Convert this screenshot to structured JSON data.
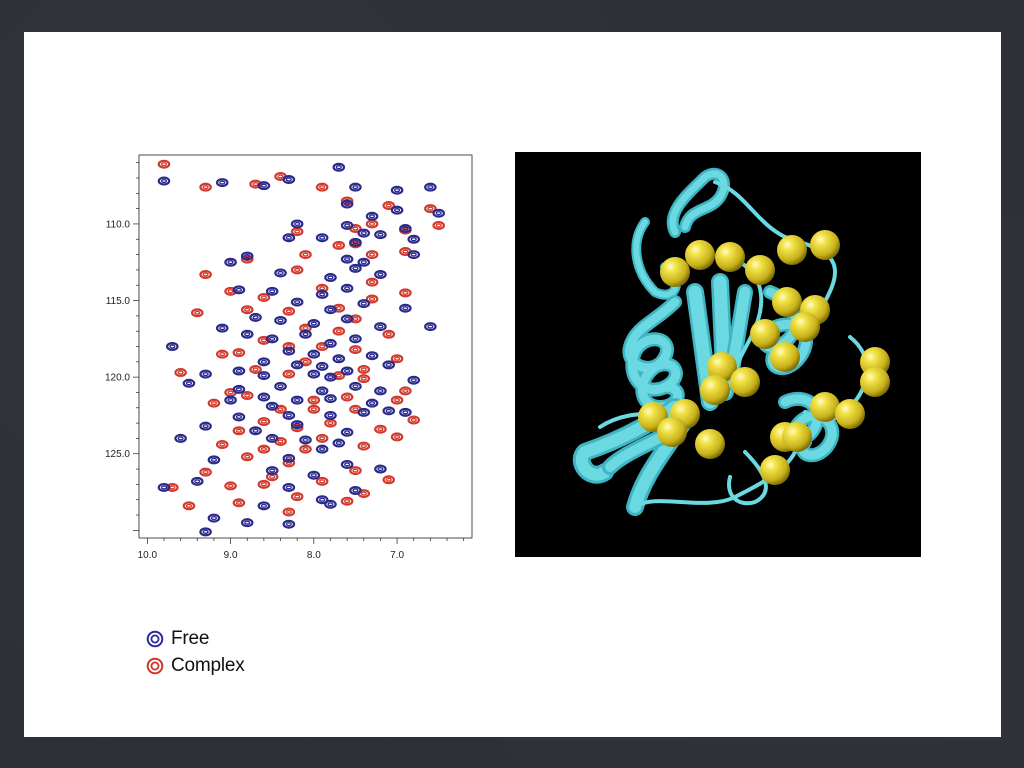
{
  "chart_data": {
    "type": "scatter",
    "title": "",
    "xlabel": "",
    "ylabel": "",
    "xlim": [
      10.1,
      6.1
    ],
    "ylim": [
      105.5,
      130.5
    ],
    "x_ticks": [
      10.0,
      9.0,
      8.0,
      7.0
    ],
    "x_tick_labels": [
      "10.0",
      "9.0",
      "8.0",
      "7.0"
    ],
    "y_ticks": [
      110.0,
      115.0,
      120.0,
      125.0
    ],
    "y_tick_labels": [
      "110.0",
      "115.0",
      "120.0",
      "125.0"
    ],
    "grid": false,
    "legend_position": "bottom-left, below plot",
    "series": [
      {
        "name": "Free",
        "color": "#2a2a8c",
        "points": [
          [
            9.8,
            107.2
          ],
          [
            9.1,
            107.3
          ],
          [
            8.6,
            107.5
          ],
          [
            8.3,
            107.1
          ],
          [
            7.7,
            106.3
          ],
          [
            7.5,
            107.6
          ],
          [
            7.0,
            107.8
          ],
          [
            6.6,
            107.6
          ],
          [
            7.6,
            108.7
          ],
          [
            7.3,
            109.5
          ],
          [
            7.0,
            109.1
          ],
          [
            6.5,
            109.3
          ],
          [
            8.2,
            110.0
          ],
          [
            7.6,
            110.1
          ],
          [
            7.2,
            110.7
          ],
          [
            6.9,
            110.3
          ],
          [
            8.3,
            110.9
          ],
          [
            7.9,
            110.9
          ],
          [
            7.5,
            111.2
          ],
          [
            7.4,
            110.6
          ],
          [
            6.8,
            111.0
          ],
          [
            9.0,
            112.5
          ],
          [
            8.8,
            112.1
          ],
          [
            7.6,
            112.3
          ],
          [
            7.4,
            112.5
          ],
          [
            6.8,
            112.0
          ],
          [
            8.4,
            113.2
          ],
          [
            7.8,
            113.5
          ],
          [
            7.5,
            112.9
          ],
          [
            7.2,
            113.3
          ],
          [
            8.9,
            114.3
          ],
          [
            8.5,
            114.4
          ],
          [
            7.9,
            114.6
          ],
          [
            7.6,
            114.2
          ],
          [
            8.2,
            115.1
          ],
          [
            7.8,
            115.6
          ],
          [
            7.4,
            115.2
          ],
          [
            6.9,
            115.5
          ],
          [
            8.7,
            116.1
          ],
          [
            8.4,
            116.3
          ],
          [
            8.0,
            116.5
          ],
          [
            7.6,
            116.2
          ],
          [
            7.2,
            116.7
          ],
          [
            6.6,
            116.7
          ],
          [
            9.1,
            116.8
          ],
          [
            8.8,
            117.2
          ],
          [
            8.5,
            117.5
          ],
          [
            8.1,
            117.2
          ],
          [
            7.8,
            117.8
          ],
          [
            7.5,
            117.5
          ],
          [
            9.7,
            118.0
          ],
          [
            8.3,
            118.3
          ],
          [
            8.0,
            118.5
          ],
          [
            7.7,
            118.8
          ],
          [
            7.3,
            118.6
          ],
          [
            8.6,
            119.0
          ],
          [
            8.2,
            119.2
          ],
          [
            7.9,
            119.3
          ],
          [
            7.6,
            119.6
          ],
          [
            7.1,
            119.2
          ],
          [
            9.3,
            119.8
          ],
          [
            8.9,
            119.6
          ],
          [
            8.6,
            119.9
          ],
          [
            8.0,
            119.8
          ],
          [
            7.8,
            120.0
          ],
          [
            6.8,
            120.2
          ],
          [
            9.5,
            120.4
          ],
          [
            8.9,
            120.8
          ],
          [
            8.4,
            120.6
          ],
          [
            7.9,
            120.9
          ],
          [
            7.5,
            120.6
          ],
          [
            7.2,
            120.9
          ],
          [
            8.6,
            121.3
          ],
          [
            8.2,
            121.5
          ],
          [
            7.8,
            121.4
          ],
          [
            7.3,
            121.7
          ],
          [
            9.0,
            121.5
          ],
          [
            8.5,
            121.9
          ],
          [
            7.1,
            122.2
          ],
          [
            8.9,
            122.6
          ],
          [
            8.3,
            122.5
          ],
          [
            7.8,
            122.5
          ],
          [
            7.4,
            122.3
          ],
          [
            6.9,
            122.3
          ],
          [
            9.3,
            123.2
          ],
          [
            8.7,
            123.5
          ],
          [
            8.2,
            123.1
          ],
          [
            7.6,
            123.6
          ],
          [
            8.5,
            124.0
          ],
          [
            8.1,
            124.1
          ],
          [
            7.7,
            124.3
          ],
          [
            7.9,
            124.7
          ],
          [
            9.6,
            124.0
          ],
          [
            9.2,
            125.4
          ],
          [
            8.3,
            125.3
          ],
          [
            7.6,
            125.7
          ],
          [
            8.5,
            126.1
          ],
          [
            8.0,
            126.4
          ],
          [
            7.2,
            126.0
          ],
          [
            9.4,
            126.8
          ],
          [
            8.3,
            127.2
          ],
          [
            7.5,
            127.4
          ],
          [
            9.8,
            127.2
          ],
          [
            7.9,
            128.0
          ],
          [
            8.6,
            128.4
          ],
          [
            9.2,
            129.2
          ],
          [
            8.3,
            129.6
          ],
          [
            8.8,
            129.5
          ],
          [
            7.8,
            128.3
          ],
          [
            9.3,
            130.1
          ]
        ]
      },
      {
        "name": "Complex",
        "color": "#d23a2d",
        "points": [
          [
            9.8,
            106.1
          ],
          [
            9.3,
            107.6
          ],
          [
            8.7,
            107.4
          ],
          [
            8.4,
            106.9
          ],
          [
            7.9,
            107.6
          ],
          [
            7.6,
            108.5
          ],
          [
            7.1,
            108.8
          ],
          [
            6.6,
            109.0
          ],
          [
            7.5,
            110.3
          ],
          [
            7.3,
            110.0
          ],
          [
            6.9,
            110.4
          ],
          [
            6.5,
            110.1
          ],
          [
            8.2,
            110.5
          ],
          [
            7.5,
            111.3
          ],
          [
            7.7,
            111.4
          ],
          [
            6.9,
            111.8
          ],
          [
            8.1,
            112.0
          ],
          [
            7.3,
            112.0
          ],
          [
            8.8,
            112.3
          ],
          [
            8.2,
            113.0
          ],
          [
            7.3,
            113.8
          ],
          [
            9.3,
            113.3
          ],
          [
            9.0,
            114.4
          ],
          [
            8.6,
            114.8
          ],
          [
            7.9,
            114.2
          ],
          [
            7.3,
            114.9
          ],
          [
            6.9,
            114.5
          ],
          [
            8.8,
            115.6
          ],
          [
            8.3,
            115.7
          ],
          [
            7.7,
            115.5
          ],
          [
            7.5,
            116.2
          ],
          [
            9.4,
            115.8
          ],
          [
            8.1,
            116.8
          ],
          [
            7.7,
            117.0
          ],
          [
            7.1,
            117.2
          ],
          [
            8.6,
            117.6
          ],
          [
            8.3,
            118.0
          ],
          [
            7.9,
            118.0
          ],
          [
            7.5,
            118.2
          ],
          [
            9.1,
            118.5
          ],
          [
            8.9,
            118.4
          ],
          [
            8.1,
            119.0
          ],
          [
            7.4,
            119.5
          ],
          [
            7.0,
            118.8
          ],
          [
            9.6,
            119.7
          ],
          [
            8.7,
            119.5
          ],
          [
            8.3,
            119.8
          ],
          [
            7.7,
            119.9
          ],
          [
            7.4,
            120.1
          ],
          [
            6.9,
            120.9
          ],
          [
            9.0,
            121.0
          ],
          [
            8.8,
            121.2
          ],
          [
            8.0,
            121.5
          ],
          [
            7.6,
            121.3
          ],
          [
            7.0,
            121.5
          ],
          [
            9.2,
            121.7
          ],
          [
            8.4,
            122.1
          ],
          [
            8.0,
            122.1
          ],
          [
            7.5,
            122.1
          ],
          [
            6.8,
            122.8
          ],
          [
            8.6,
            122.9
          ],
          [
            8.2,
            123.3
          ],
          [
            7.8,
            123.0
          ],
          [
            7.2,
            123.4
          ],
          [
            8.9,
            123.5
          ],
          [
            8.4,
            124.2
          ],
          [
            7.9,
            124.0
          ],
          [
            7.4,
            124.5
          ],
          [
            7.0,
            123.9
          ],
          [
            9.1,
            124.4
          ],
          [
            8.6,
            124.7
          ],
          [
            8.1,
            124.7
          ],
          [
            8.8,
            125.2
          ],
          [
            8.3,
            125.6
          ],
          [
            7.5,
            126.1
          ],
          [
            9.3,
            126.2
          ],
          [
            8.5,
            126.5
          ],
          [
            7.9,
            126.8
          ],
          [
            7.1,
            126.7
          ],
          [
            9.0,
            127.1
          ],
          [
            8.6,
            127.0
          ],
          [
            9.7,
            127.2
          ],
          [
            8.2,
            127.8
          ],
          [
            7.4,
            127.6
          ],
          [
            8.9,
            128.2
          ],
          [
            8.3,
            128.8
          ],
          [
            7.6,
            128.1
          ],
          [
            9.5,
            128.4
          ]
        ]
      }
    ]
  },
  "legend": {
    "items": [
      {
        "label": "Free",
        "color": "#2a2a9c"
      },
      {
        "label": "Complex",
        "color": "#d2342a"
      }
    ]
  },
  "structure_image": {
    "background": "#000000",
    "ribbon_color": "#5fd3dd",
    "sphere_color": "#e8d530"
  }
}
